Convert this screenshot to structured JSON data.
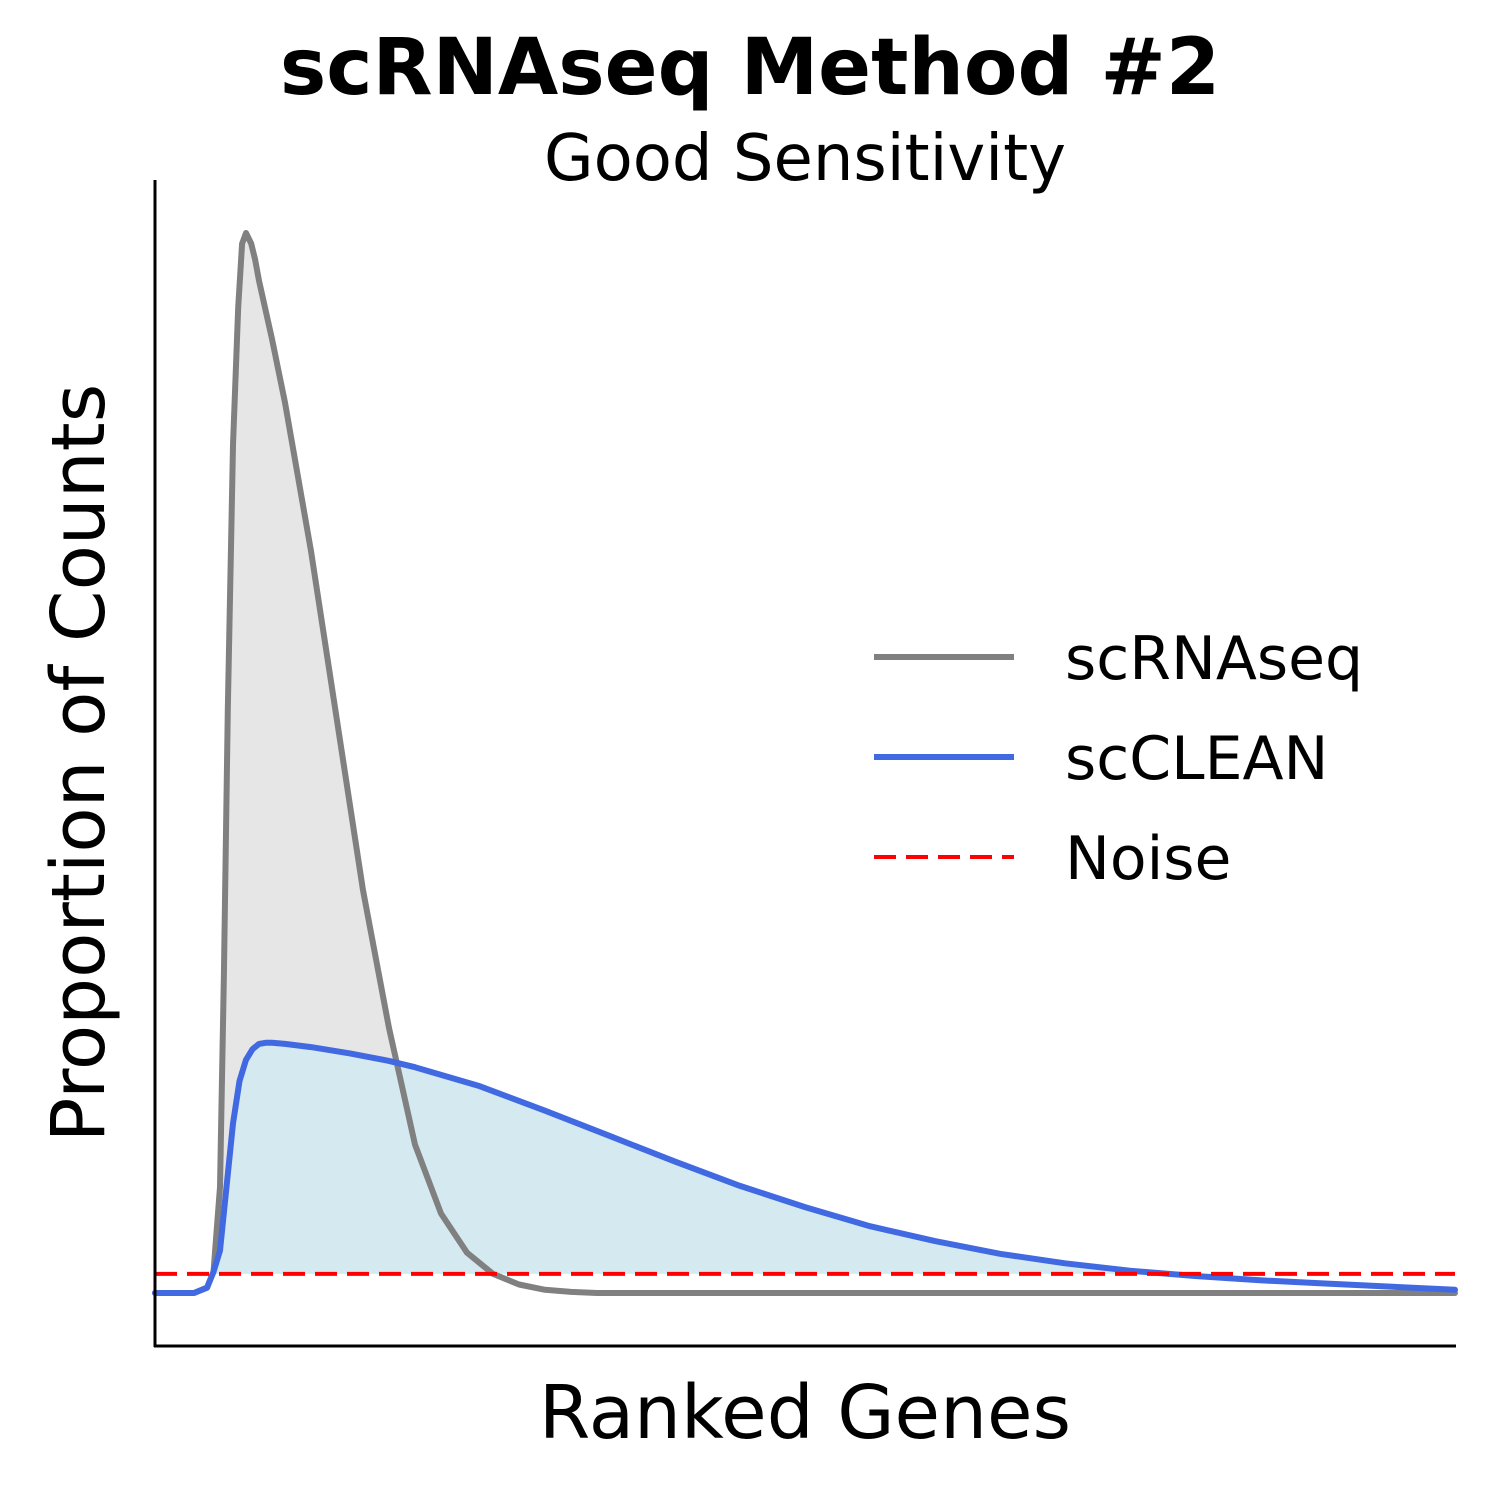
{
  "chart_data": {
    "type": "area",
    "title": "scRNAseq Method #2",
    "subtitle": "Good Sensitivity",
    "xlabel": "Ranked Genes",
    "ylabel": "Proportion of Counts",
    "xlim": [
      0,
      100
    ],
    "ylim": [
      -0.05,
      1.05
    ],
    "grid": false,
    "legend_position": "center-right",
    "series": [
      {
        "name": "scRNAseq",
        "color": "#808080",
        "fill": "#e6e6e6",
        "style": "solid",
        "x": [
          0,
          3,
          4,
          4.5,
          5,
          5.3,
          5.6,
          6,
          6.4,
          6.7,
          7,
          7.4,
          7.7,
          8,
          9,
          10,
          12,
          14,
          16,
          18,
          20,
          22,
          24,
          26,
          28,
          30,
          32,
          34,
          36,
          38,
          40,
          45,
          50,
          60,
          70,
          80,
          90,
          100
        ],
        "y": [
          0,
          0,
          0.005,
          0.02,
          0.1,
          0.3,
          0.55,
          0.8,
          0.93,
          0.99,
          1.0,
          0.99,
          0.975,
          0.955,
          0.9,
          0.84,
          0.7,
          0.54,
          0.38,
          0.25,
          0.14,
          0.075,
          0.038,
          0.018,
          0.008,
          0.003,
          0.001,
          0,
          0,
          0,
          0,
          0,
          0,
          0,
          0,
          0,
          0,
          0
        ]
      },
      {
        "name": "scCLEAN",
        "color": "#4169e1",
        "fill": "#d4eaf0",
        "style": "solid",
        "x": [
          0,
          3,
          4,
          4.5,
          5,
          5.5,
          6,
          6.5,
          7,
          7.5,
          8,
          8.5,
          9,
          10,
          12,
          15,
          18,
          20,
          25,
          30,
          35,
          40,
          45,
          50,
          55,
          60,
          65,
          70,
          75,
          80,
          85,
          90,
          95,
          100
        ],
        "y": [
          0,
          0,
          0.005,
          0.02,
          0.04,
          0.1,
          0.16,
          0.2,
          0.22,
          0.23,
          0.235,
          0.236,
          0.236,
          0.235,
          0.232,
          0.226,
          0.219,
          0.213,
          0.195,
          0.172,
          0.148,
          0.124,
          0.101,
          0.081,
          0.063,
          0.049,
          0.037,
          0.028,
          0.021,
          0.016,
          0.012,
          0.009,
          0.006,
          0.003
        ]
      },
      {
        "name": "Noise",
        "color": "#ff0000",
        "style": "dashed",
        "x": [
          0,
          100
        ],
        "y": [
          0.018,
          0.018
        ]
      }
    ]
  }
}
